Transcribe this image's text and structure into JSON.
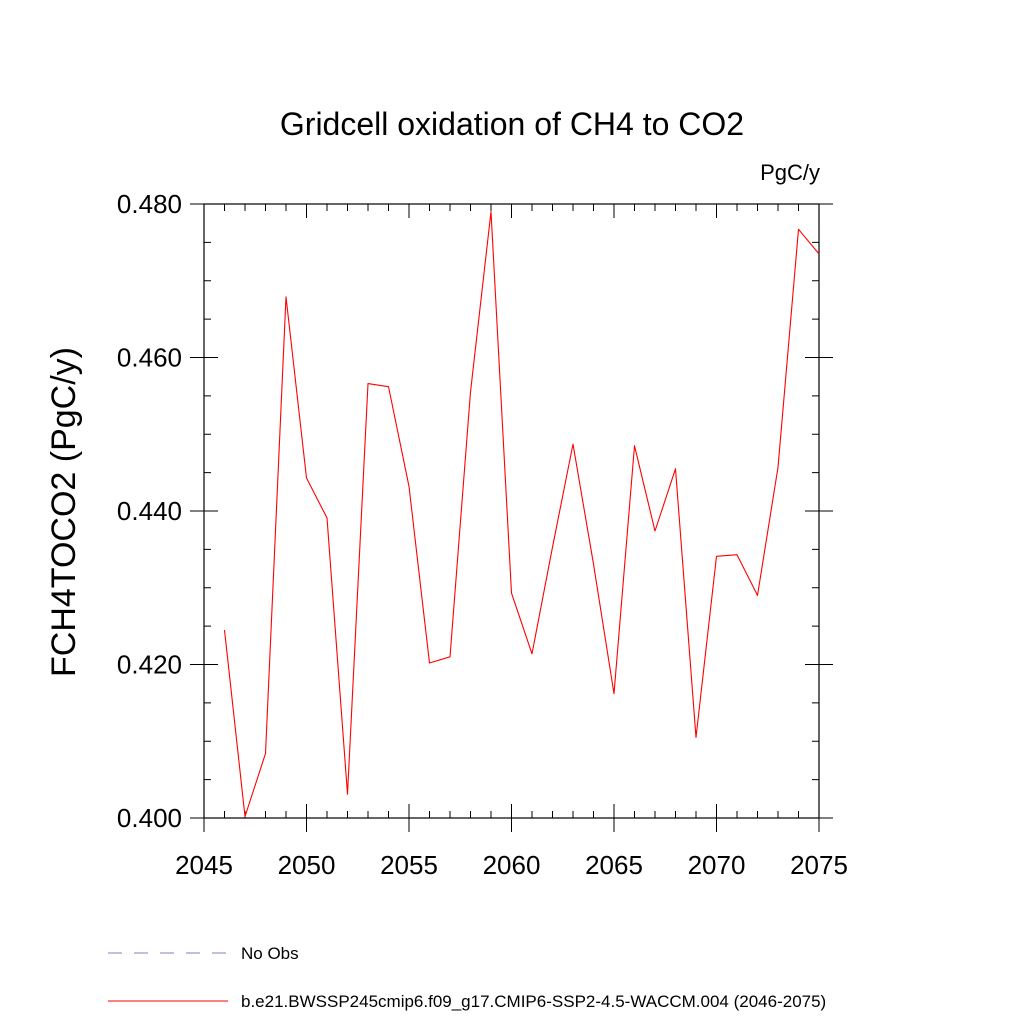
{
  "chart_data": {
    "type": "line",
    "title": "Gridcell oxidation of CH4 to CO2",
    "units": "PgC/y",
    "ylabel": "FCH4TOCO2  (PgC/y)",
    "xlabel": "",
    "xlim": [
      2045,
      2075
    ],
    "ylim": [
      0.4,
      0.48
    ],
    "x_ticks": [
      2045,
      2050,
      2055,
      2060,
      2065,
      2070,
      2075
    ],
    "x_tick_labels": [
      "2045",
      "2050",
      "2055",
      "2060",
      "2065",
      "2070",
      "2075"
    ],
    "y_ticks": [
      0.4,
      0.42,
      0.44,
      0.46,
      0.48
    ],
    "y_tick_labels": [
      "0.400",
      "0.420",
      "0.440",
      "0.460",
      "0.480"
    ],
    "x_minor_step": 1,
    "y_minor_step": 0.005,
    "grid": false,
    "legend_position": "bottom",
    "series": [
      {
        "name": "b.e21.BWSSP245cmip6.f09_g17.CMIP6-SSP2-4.5-WACCM.004 (2046-2075)",
        "color": "#ff0000",
        "line_style": "solid",
        "x": [
          2046,
          2047,
          2048,
          2049,
          2050,
          2051,
          2052,
          2053,
          2054,
          2055,
          2056,
          2057,
          2058,
          2059,
          2060,
          2061,
          2062,
          2063,
          2064,
          2065,
          2066,
          2067,
          2068,
          2069,
          2070,
          2071,
          2072,
          2073,
          2074,
          2075
        ],
        "values": [
          0.4245,
          0.4002,
          0.4084,
          0.4679,
          0.4443,
          0.4391,
          0.4031,
          0.4566,
          0.4562,
          0.4432,
          0.4202,
          0.421,
          0.4555,
          0.479,
          0.4293,
          0.4214,
          0.4353,
          0.4487,
          0.4331,
          0.4162,
          0.4485,
          0.4374,
          0.4455,
          0.4105,
          0.4341,
          0.4343,
          0.429,
          0.4457,
          0.4767,
          0.4735
        ]
      }
    ],
    "legend": [
      {
        "label": "No Obs",
        "color": "#8080c0",
        "line_style": "dashed"
      },
      {
        "label": "b.e21.BWSSP245cmip6.f09_g17.CMIP6-SSP2-4.5-WACCM.004 (2046-2075)",
        "color": "#ff0000",
        "line_style": "solid"
      }
    ]
  }
}
